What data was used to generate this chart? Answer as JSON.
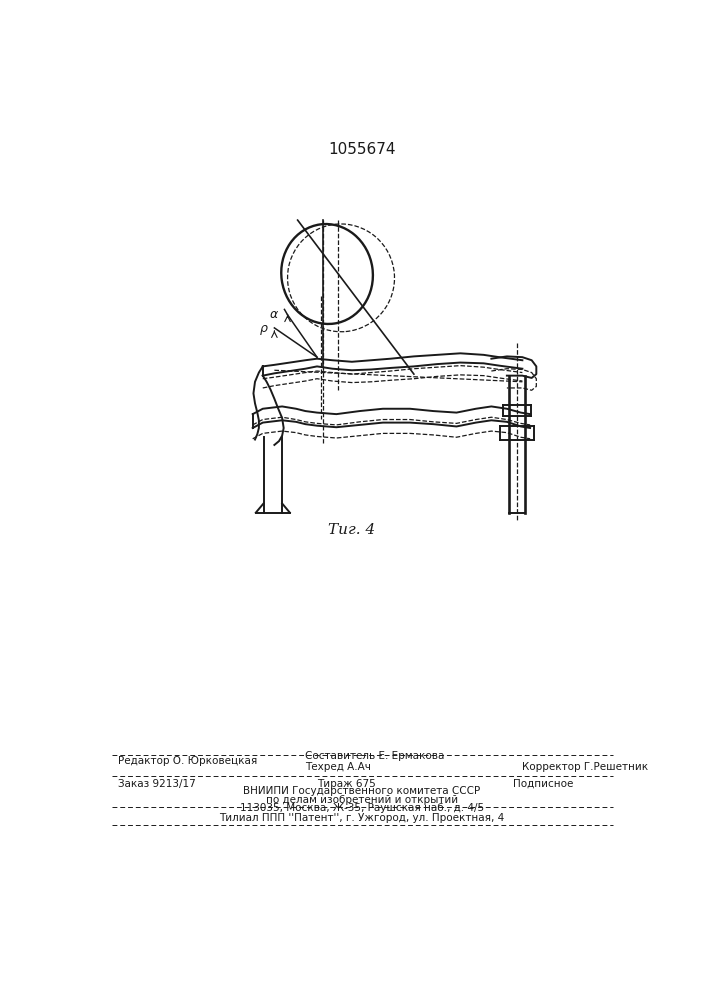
{
  "patent_number": "1055674",
  "fig_label": "Τиг. 4",
  "bg_color": "#ffffff",
  "text_color": "#1a1a1a",
  "footer": {
    "line1_left": "Редактор О. Юрковецкая",
    "line1_center_top": "Составитель Е. Ермакова",
    "line1_center_bot": "Техред А.Ач",
    "line1_right": "Корректор Г.Решетник",
    "line2_left": "Заказ 9213/17",
    "line2_center": "Тираж 675",
    "line2_right": "Подписное",
    "line3": "ВНИИПИ Государственного комитета СССР",
    "line4": "по делам изобретений и открытий",
    "line5": "113035, Москва, Ж-35, Раушская наб., д. 4/5",
    "line6": "Τилиал ППП ''Патент'', г. Ужгород, ул. Проектная, 4"
  }
}
